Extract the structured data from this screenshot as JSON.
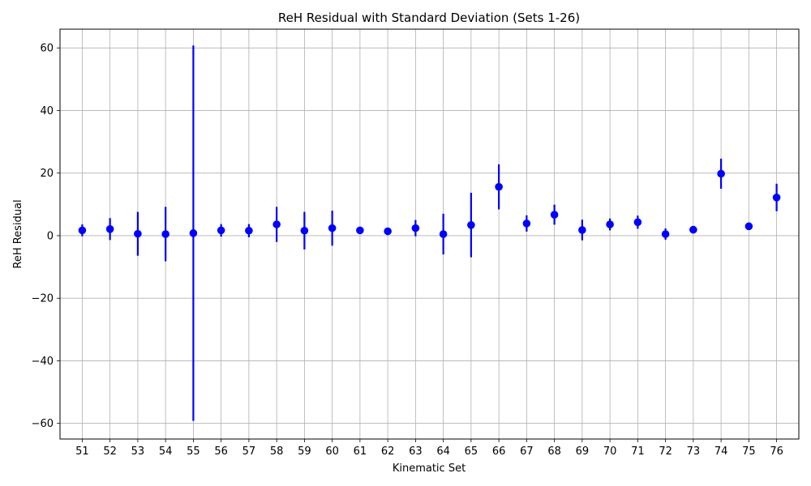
{
  "chart_data": {
    "type": "scatter",
    "title": "ReH Residual with Standard Deviation (Sets 1-26)",
    "xlabel": "Kinematic Set",
    "ylabel": "ReH Residual",
    "grid": true,
    "ylim": [
      -65,
      66
    ],
    "yticks": [
      -60,
      -40,
      -20,
      0,
      20,
      40,
      60
    ],
    "ytick_labels": [
      "−60",
      "−40",
      "−20",
      "0",
      "20",
      "40",
      "60"
    ],
    "color": "#0000ff",
    "categories": [
      "51",
      "52",
      "53",
      "54",
      "55",
      "56",
      "57",
      "58",
      "59",
      "60",
      "61",
      "62",
      "63",
      "64",
      "65",
      "66",
      "67",
      "68",
      "69",
      "70",
      "71",
      "72",
      "73",
      "74",
      "75",
      "76"
    ],
    "values": [
      1.7,
      2.1,
      0.6,
      0.5,
      0.8,
      1.7,
      1.6,
      3.6,
      1.6,
      2.4,
      1.7,
      1.4,
      2.4,
      0.5,
      3.4,
      15.6,
      3.9,
      6.7,
      1.8,
      3.6,
      4.3,
      0.5,
      1.9,
      19.8,
      3.0,
      12.2
    ],
    "std": [
      1.9,
      3.5,
      7.0,
      8.7,
      60.0,
      2.0,
      2.1,
      5.6,
      6.0,
      5.6,
      0.4,
      0.3,
      2.6,
      6.5,
      10.3,
      7.2,
      2.6,
      3.2,
      3.3,
      1.9,
      2.1,
      1.8,
      1.2,
      4.8,
      0.6,
      4.4
    ]
  }
}
